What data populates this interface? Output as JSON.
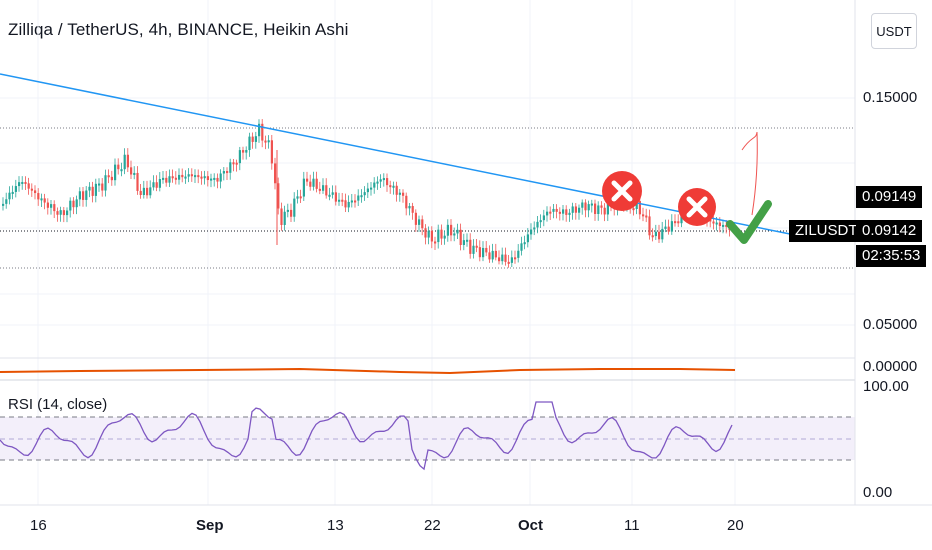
{
  "header": {
    "title": "Zilliqa / TetherUS, 4h, BINANCE, Heikin Ashi",
    "currency_button": "USDT"
  },
  "price_axis": {
    "labels": [
      "0.15000",
      "0.05000",
      "0.00000"
    ],
    "current_price": "0.09149",
    "last_price": "0.09142",
    "symbol_tag": "ZILUSDT",
    "countdown": "02:35:53"
  },
  "rsi_pane": {
    "title": "RSI (14, close)",
    "axis_labels": [
      "100.00",
      "0.00"
    ]
  },
  "time_axis": {
    "ticks": [
      {
        "label": "16",
        "bold": false
      },
      {
        "label": "Sep",
        "bold": true
      },
      {
        "label": "13",
        "bold": false
      },
      {
        "label": "22",
        "bold": false
      },
      {
        "label": "Oct",
        "bold": true
      },
      {
        "label": "11",
        "bold": false
      },
      {
        "label": "20",
        "bold": false
      }
    ]
  },
  "annotations": {
    "rejection_marks": [
      "x-mark",
      "x-mark"
    ],
    "confirmation_mark": "check-mark"
  },
  "colors": {
    "up_candle": "#26a69a",
    "down_candle": "#ef5350",
    "trendline": "#2196f3",
    "rsi_line": "#7e57c2",
    "rsi_band": "#f3effa",
    "x_mark": "#ef3b36",
    "check_mark": "#43a047",
    "volume_line": "#e65100"
  }
}
